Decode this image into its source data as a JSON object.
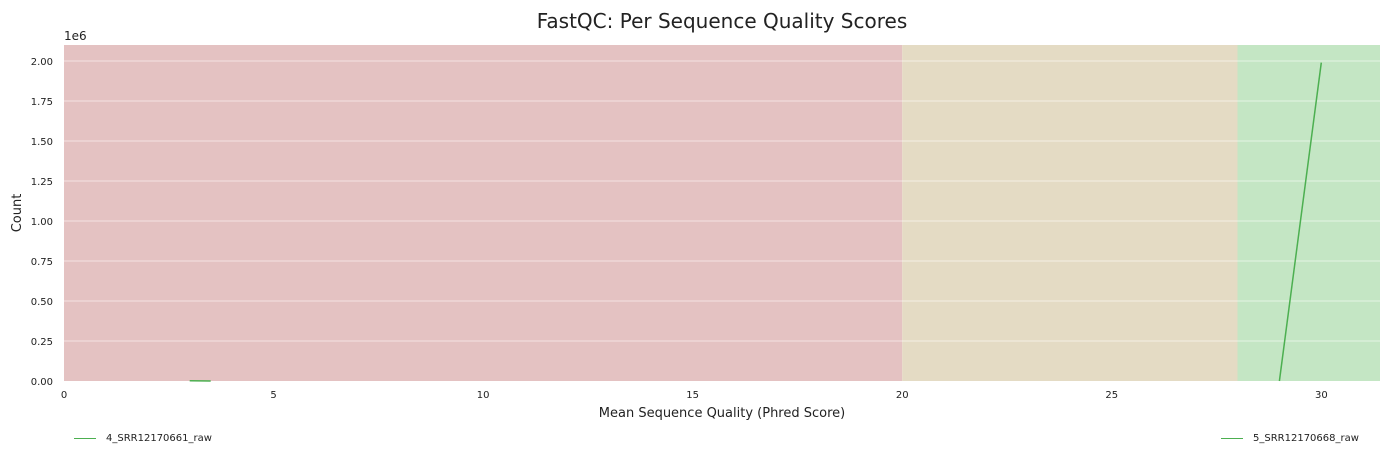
{
  "chart_data": {
    "type": "line",
    "title": "FastQC: Per Sequence Quality Scores",
    "xlabel": "Mean Sequence Quality (Phred Score)",
    "ylabel": "Count",
    "y_offset_label": "1e6",
    "xlim": [
      0,
      31.4
    ],
    "ylim": [
      0,
      2100000
    ],
    "x_ticks": [
      0,
      5,
      10,
      15,
      20,
      25,
      30
    ],
    "x_tick_labels": [
      "0",
      "5",
      "10",
      "15",
      "20",
      "25",
      "30"
    ],
    "y_ticks": [
      0,
      250000,
      500000,
      750000,
      1000000,
      1250000,
      1500000,
      1750000,
      2000000
    ],
    "y_tick_labels": [
      "0.00",
      "0.25",
      "0.50",
      "0.75",
      "1.00",
      "1.25",
      "1.50",
      "1.75",
      "2.00"
    ],
    "grid": "horizontal",
    "bands": [
      {
        "from": 0,
        "to": 20,
        "color": "#e4c2c2",
        "zone": "fail"
      },
      {
        "from": 20,
        "to": 28,
        "color": "#e4dbc4",
        "zone": "warn"
      },
      {
        "from": 28,
        "to": 31.4,
        "color": "#c4e6c4",
        "zone": "pass"
      }
    ],
    "series": [
      {
        "name": "4_SRR12170661_raw",
        "color": "#4caf50",
        "points": [
          [
            3,
            2000
          ],
          [
            3.5,
            0
          ]
        ]
      },
      {
        "name": "5_SRR12170668_raw",
        "color": "#4caf50",
        "points": [
          [
            29,
            0
          ],
          [
            30,
            1990000
          ]
        ]
      }
    ],
    "legend_position": "bottom"
  }
}
